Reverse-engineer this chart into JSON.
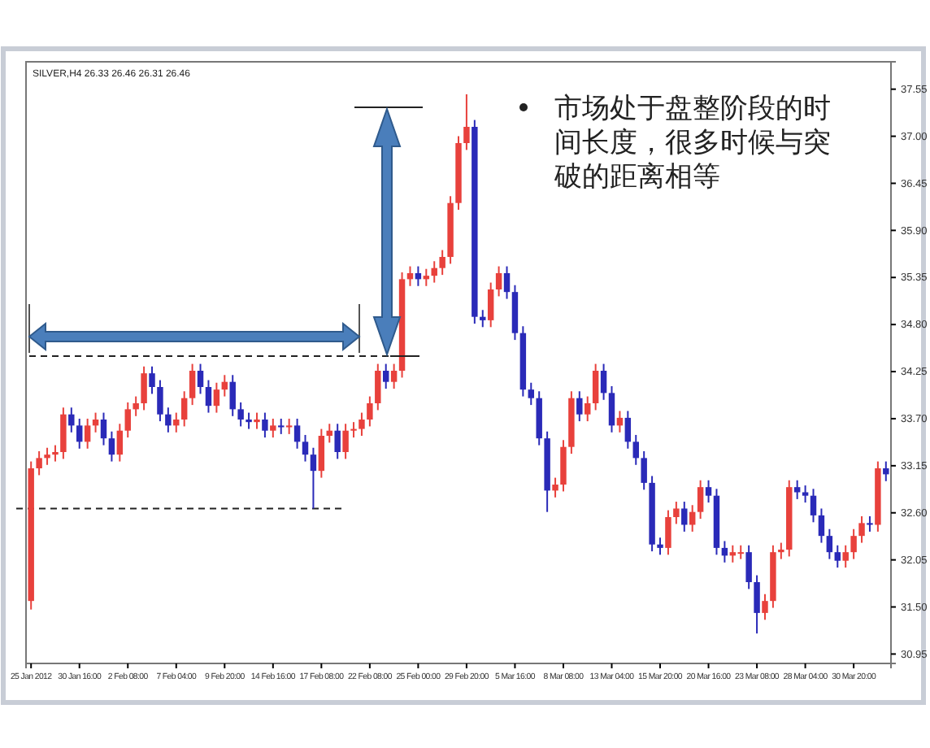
{
  "chart_data": {
    "type": "candlestick",
    "annotations": [
      "SILVER,H4 26.33 26.46 26.31 26.46",
      "市场处于盘整阶段的时间长度，很多时候与突破的距离相等"
    ],
    "categories": [
      "25 Jan 2012",
      null,
      null,
      null,
      null,
      null,
      "30 Jan 16:00",
      null,
      null,
      null,
      null,
      null,
      "2 Feb 08:00",
      null,
      null,
      null,
      null,
      null,
      "7 Feb 04:00",
      null,
      null,
      null,
      null,
      null,
      "9 Feb 20:00",
      null,
      null,
      null,
      null,
      null,
      "14 Feb 16:00",
      null,
      null,
      null,
      null,
      null,
      "17 Feb 08:00",
      null,
      null,
      null,
      null,
      null,
      "22 Feb 08:00",
      null,
      null,
      null,
      null,
      null,
      "25 Feb 00:00",
      null,
      null,
      null,
      null,
      null,
      "29 Feb 20:00",
      null,
      null,
      null,
      null,
      null,
      "5 Mar 16:00",
      null,
      null,
      null,
      null,
      null,
      "8 Mar 08:00",
      null,
      null,
      null,
      null,
      null,
      "13 Mar 04:00",
      null,
      null,
      null,
      null,
      null,
      "15 Mar 20:00",
      null,
      null,
      null,
      null,
      null,
      "20 Mar 16:00",
      null,
      null,
      null,
      null,
      null,
      "23 Mar 08:00",
      null,
      null,
      null,
      null,
      null,
      "28 Mar 04:00",
      null,
      null,
      null,
      null,
      null,
      "30 Mar 20:00",
      null,
      null,
      null,
      null
    ],
    "ohlc": [
      [
        31.57,
        33.2,
        31.47,
        33.12
      ],
      [
        33.12,
        33.32,
        33.04,
        33.24
      ],
      [
        33.24,
        33.36,
        33.16,
        33.28
      ],
      [
        33.28,
        33.39,
        33.2,
        33.31
      ],
      [
        33.31,
        33.83,
        33.23,
        33.75
      ],
      [
        33.75,
        33.83,
        33.54,
        33.62
      ],
      [
        33.62,
        33.7,
        33.35,
        33.43
      ],
      [
        33.43,
        33.7,
        33.35,
        33.62
      ],
      [
        33.62,
        33.77,
        33.54,
        33.69
      ],
      [
        33.69,
        33.77,
        33.39,
        33.47
      ],
      [
        33.47,
        33.55,
        33.2,
        33.28
      ],
      [
        33.28,
        33.64,
        33.2,
        33.56
      ],
      [
        33.56,
        33.89,
        33.48,
        33.81
      ],
      [
        33.81,
        33.96,
        33.73,
        33.88
      ],
      [
        33.88,
        34.31,
        33.8,
        34.23
      ],
      [
        34.23,
        34.31,
        33.99,
        34.07
      ],
      [
        34.07,
        34.15,
        33.67,
        33.75
      ],
      [
        33.75,
        33.83,
        33.54,
        33.62
      ],
      [
        33.62,
        33.77,
        33.54,
        33.69
      ],
      [
        33.69,
        34.02,
        33.61,
        33.94
      ],
      [
        33.94,
        34.34,
        33.86,
        34.26
      ],
      [
        34.26,
        34.34,
        33.99,
        34.07
      ],
      [
        34.07,
        34.15,
        33.77,
        33.85
      ],
      [
        33.85,
        34.12,
        33.77,
        34.04
      ],
      [
        34.04,
        34.21,
        33.96,
        34.13
      ],
      [
        34.13,
        34.21,
        33.73,
        33.81
      ],
      [
        33.81,
        33.89,
        33.61,
        33.69
      ],
      [
        33.69,
        33.77,
        33.58,
        33.66
      ],
      [
        33.66,
        33.77,
        33.58,
        33.69
      ],
      [
        33.69,
        33.77,
        33.48,
        33.56
      ],
      [
        33.56,
        33.7,
        33.48,
        33.62
      ],
      [
        33.62,
        33.7,
        33.52,
        33.6
      ],
      [
        33.6,
        33.7,
        33.52,
        33.62
      ],
      [
        33.62,
        33.7,
        33.35,
        33.43
      ],
      [
        33.43,
        33.51,
        33.2,
        33.28
      ],
      [
        33.28,
        33.36,
        32.65,
        33.09
      ],
      [
        33.09,
        33.58,
        33.01,
        33.5
      ],
      [
        33.5,
        33.64,
        33.42,
        33.56
      ],
      [
        33.56,
        33.64,
        33.23,
        33.31
      ],
      [
        33.31,
        33.64,
        33.23,
        33.56
      ],
      [
        33.56,
        33.66,
        33.48,
        33.58
      ],
      [
        33.58,
        33.77,
        33.5,
        33.69
      ],
      [
        33.69,
        33.96,
        33.61,
        33.88
      ],
      [
        33.88,
        34.34,
        33.8,
        34.26
      ],
      [
        34.26,
        34.34,
        34.05,
        34.13
      ],
      [
        34.13,
        34.34,
        34.05,
        34.26
      ],
      [
        34.26,
        35.41,
        34.18,
        35.33
      ],
      [
        35.33,
        35.48,
        35.25,
        35.4
      ],
      [
        35.4,
        35.48,
        35.25,
        35.33
      ],
      [
        35.33,
        35.45,
        35.25,
        35.37
      ],
      [
        35.37,
        35.54,
        35.29,
        35.46
      ],
      [
        35.46,
        35.67,
        35.38,
        35.59
      ],
      [
        35.59,
        36.3,
        35.51,
        36.22
      ],
      [
        36.22,
        37.0,
        36.14,
        36.92
      ],
      [
        36.92,
        37.49,
        36.84,
        37.11
      ],
      [
        37.11,
        37.19,
        34.81,
        34.89
      ],
      [
        34.89,
        34.97,
        34.77,
        34.85
      ],
      [
        34.85,
        35.29,
        34.77,
        35.21
      ],
      [
        35.21,
        35.48,
        35.13,
        35.4
      ],
      [
        35.4,
        35.48,
        35.1,
        35.18
      ],
      [
        35.18,
        35.26,
        34.62,
        34.7
      ],
      [
        34.7,
        34.78,
        33.96,
        34.04
      ],
      [
        34.04,
        34.12,
        33.86,
        33.94
      ],
      [
        33.94,
        34.02,
        33.39,
        33.47
      ],
      [
        33.47,
        33.55,
        32.61,
        32.86
      ],
      [
        32.86,
        33.01,
        32.78,
        32.93
      ],
      [
        32.93,
        33.45,
        32.85,
        33.37
      ],
      [
        33.37,
        34.02,
        33.29,
        33.94
      ],
      [
        33.94,
        34.02,
        33.67,
        33.75
      ],
      [
        33.75,
        33.96,
        33.67,
        33.88
      ],
      [
        33.88,
        34.34,
        33.8,
        34.26
      ],
      [
        34.26,
        34.34,
        33.92,
        34.0
      ],
      [
        34.0,
        34.08,
        33.54,
        33.62
      ],
      [
        33.62,
        33.79,
        33.54,
        33.71
      ],
      [
        33.71,
        33.79,
        33.35,
        33.43
      ],
      [
        33.43,
        33.51,
        33.16,
        33.24
      ],
      [
        33.24,
        33.32,
        32.87,
        32.95
      ],
      [
        32.95,
        33.03,
        32.15,
        32.23
      ],
      [
        32.23,
        32.31,
        32.11,
        32.19
      ],
      [
        32.19,
        32.63,
        32.11,
        32.55
      ],
      [
        32.55,
        32.73,
        32.47,
        32.65
      ],
      [
        32.65,
        32.73,
        32.38,
        32.46
      ],
      [
        32.46,
        32.69,
        32.38,
        32.61
      ],
      [
        32.61,
        32.98,
        32.53,
        32.9
      ],
      [
        32.9,
        32.98,
        32.72,
        32.8
      ],
      [
        32.8,
        32.88,
        32.11,
        32.19
      ],
      [
        32.19,
        32.27,
        32.02,
        32.1
      ],
      [
        32.1,
        32.22,
        32.02,
        32.14
      ],
      [
        32.14,
        32.22,
        32.06,
        32.14
      ],
      [
        32.14,
        32.22,
        31.71,
        31.79
      ],
      [
        31.79,
        31.87,
        31.19,
        31.43
      ],
      [
        31.43,
        31.65,
        31.35,
        31.57
      ],
      [
        31.57,
        32.22,
        31.49,
        32.14
      ],
      [
        32.14,
        32.25,
        32.06,
        32.17
      ],
      [
        32.17,
        32.98,
        32.09,
        32.9
      ],
      [
        32.9,
        32.98,
        32.76,
        32.84
      ],
      [
        32.84,
        32.92,
        32.72,
        32.8
      ],
      [
        32.8,
        32.88,
        32.49,
        32.57
      ],
      [
        32.57,
        32.65,
        32.25,
        32.33
      ],
      [
        32.33,
        32.41,
        32.06,
        32.14
      ],
      [
        32.14,
        32.22,
        31.96,
        32.04
      ],
      [
        32.04,
        32.22,
        31.96,
        32.14
      ],
      [
        32.14,
        32.41,
        32.06,
        32.33
      ],
      [
        32.33,
        32.56,
        32.25,
        32.48
      ],
      [
        32.48,
        32.56,
        32.38,
        32.46
      ],
      [
        32.46,
        33.2,
        32.38,
        33.12
      ],
      [
        33.12,
        33.2,
        32.97,
        33.05
      ]
    ],
    "colors": [
      "#e8413c",
      "#e8413c",
      "#e8413c",
      "#e8413c",
      "#e8413c",
      "#2a2ab8",
      "#2a2ab8",
      "#e8413c",
      "#e8413c",
      "#2a2ab8",
      "#2a2ab8",
      "#e8413c",
      "#e8413c",
      "#e8413c",
      "#e8413c",
      "#2a2ab8",
      "#2a2ab8",
      "#2a2ab8",
      "#e8413c",
      "#e8413c",
      "#e8413c",
      "#2a2ab8",
      "#2a2ab8",
      "#e8413c",
      "#e8413c",
      "#2a2ab8",
      "#2a2ab8",
      "#2a2ab8",
      "#e8413c",
      "#2a2ab8",
      "#e8413c",
      "#2a2ab8",
      "#e8413c",
      "#2a2ab8",
      "#2a2ab8",
      "#2a2ab8",
      "#e8413c",
      "#e8413c",
      "#2a2ab8",
      "#e8413c",
      "#e8413c",
      "#e8413c",
      "#e8413c",
      "#e8413c",
      "#2a2ab8",
      "#e8413c",
      "#e8413c",
      "#e8413c",
      "#2a2ab8",
      "#e8413c",
      "#e8413c",
      "#e8413c",
      "#e8413c",
      "#e8413c",
      "#e8413c",
      "#2a2ab8",
      "#2a2ab8",
      "#e8413c",
      "#e8413c",
      "#2a2ab8",
      "#2a2ab8",
      "#2a2ab8",
      "#2a2ab8",
      "#2a2ab8",
      "#2a2ab8",
      "#e8413c",
      "#e8413c",
      "#e8413c",
      "#2a2ab8",
      "#e8413c",
      "#e8413c",
      "#2a2ab8",
      "#2a2ab8",
      "#e8413c",
      "#2a2ab8",
      "#2a2ab8",
      "#2a2ab8",
      "#2a2ab8",
      "#2a2ab8",
      "#e8413c",
      "#e8413c",
      "#2a2ab8",
      "#e8413c",
      "#e8413c",
      "#2a2ab8",
      "#2a2ab8",
      "#2a2ab8",
      "#e8413c",
      "#e8413c",
      "#2a2ab8",
      "#2a2ab8",
      "#e8413c",
      "#e8413c",
      "#e8413c",
      "#e8413c",
      "#2a2ab8",
      "#2a2ab8",
      "#2a2ab8",
      "#2a2ab8",
      "#2a2ab8",
      "#2a2ab8",
      "#e8413c",
      "#e8413c",
      "#e8413c",
      "#2a2ab8",
      "#e8413c",
      "#2a2ab8"
    ],
    "ylim": [
      30.84,
      37.87
    ],
    "yticks": [
      {
        "value": 30.95,
        "label": "30.95"
      },
      {
        "value": 31.5,
        "label": "31.50"
      },
      {
        "value": 32.05,
        "label": "32.05"
      },
      {
        "value": 32.6,
        "label": "32.60"
      },
      {
        "value": 33.15,
        "label": "33.15"
      },
      {
        "value": 33.7,
        "label": "33.70"
      },
      {
        "value": 34.25,
        "label": "34.25"
      },
      {
        "value": 34.8,
        "label": "34.80"
      },
      {
        "value": 35.35,
        "label": "35.35"
      },
      {
        "value": 35.9,
        "label": "35.90"
      },
      {
        "value": 36.45,
        "label": "36.45"
      },
      {
        "value": 37,
        "label": "37.00"
      },
      {
        "value": 37.55,
        "label": "37.55"
      }
    ],
    "ref_lines": [
      {
        "axis": "y",
        "value": 34.43,
        "line_style": "dashed"
      },
      {
        "axis": "y",
        "value": 32.65,
        "line_style": "dashed"
      }
    ],
    "grid": false,
    "legend": false
  }
}
